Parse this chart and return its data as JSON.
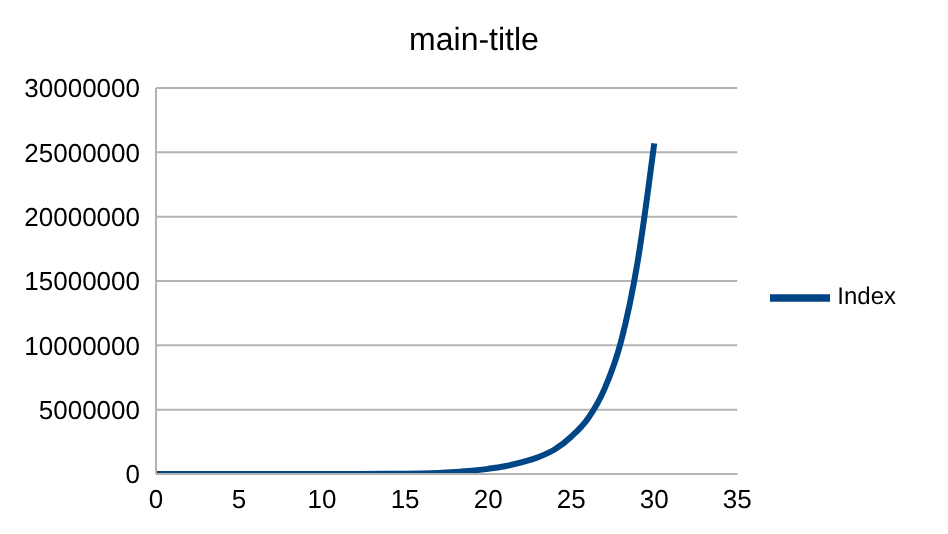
{
  "chart_data": {
    "type": "line",
    "title": "main-title",
    "x": [
      0,
      2,
      4,
      6,
      8,
      10,
      12,
      14,
      15,
      16,
      17,
      18,
      19,
      20,
      21,
      22,
      23,
      24,
      25,
      26,
      27,
      28,
      29,
      30
    ],
    "series": [
      {
        "name": "Index",
        "color": "#004586",
        "values": [
          0,
          0,
          0,
          0,
          0,
          0,
          0,
          10000,
          20000,
          40000,
          80000,
          150000,
          250000,
          400000,
          600000,
          900000,
          1300000,
          1900000,
          2900000,
          4300000,
          6600000,
          10300000,
          16500000,
          25700000
        ]
      }
    ],
    "xlim": [
      0,
      35
    ],
    "xticks": [
      0,
      5,
      10,
      15,
      20,
      25,
      30,
      35
    ],
    "ylim": [
      0,
      30000000
    ],
    "yticks": [
      0,
      5000000,
      10000000,
      15000000,
      20000000,
      25000000,
      30000000
    ],
    "grid": "y",
    "legend": "right",
    "marker": "none",
    "line_style": "solid"
  }
}
